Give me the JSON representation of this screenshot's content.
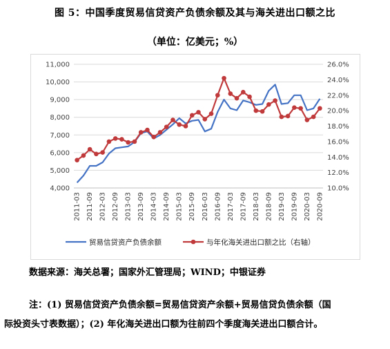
{
  "figure": {
    "title": "图 5：中国季度贸易信贷资产负债余额及其与海关进出口额之比",
    "unit": "（单位：亿美元；%）",
    "source": "数据来源：海关总署；国家外汇管理局；WIND；中银证券",
    "note_line1": "注：(1) 贸易信贷资产负债余额=贸易信贷资产余额+贸易信贷负债余额（国",
    "note_line2": "际投资头寸表数据）；(2) 年化海关进出口额为往前四个季度海关进出口额合计。"
  },
  "chart_data": {
    "type": "line",
    "x": [
      "2011-03",
      "2011-06",
      "2011-09",
      "2011-12",
      "2012-03",
      "2012-06",
      "2012-09",
      "2012-12",
      "2013-03",
      "2013-06",
      "2013-09",
      "2013-12",
      "2014-03",
      "2014-06",
      "2014-09",
      "2014-12",
      "2015-03",
      "2015-06",
      "2015-09",
      "2015-12",
      "2016-03",
      "2016-06",
      "2016-09",
      "2016-12",
      "2017-03",
      "2017-06",
      "2017-09",
      "2017-12",
      "2018-03",
      "2018-06",
      "2018-09",
      "2018-12",
      "2019-03",
      "2019-06",
      "2019-09",
      "2019-12",
      "2020-03",
      "2020-06",
      "2020-09"
    ],
    "x_tick_labels": [
      "2011-03",
      "2011-09",
      "2012-03",
      "2012-09",
      "2013-03",
      "2013-09",
      "2014-03",
      "2014-09",
      "2015-03",
      "2015-09",
      "2016-03",
      "2016-09",
      "2017-03",
      "2017-09",
      "2018-03",
      "2018-09",
      "2019-03",
      "2019-09",
      "2020-03",
      "2020-09"
    ],
    "left_axis": {
      "ylim": [
        4000,
        11000
      ],
      "ticks": [
        "4,000",
        "5,000",
        "6,000",
        "7,000",
        "8,000",
        "9,000",
        "10,000",
        "11,000"
      ]
    },
    "right_axis": {
      "ylim": [
        10.0,
        26.0
      ],
      "ticks": [
        "10.0%",
        "12.0%",
        "14.0%",
        "16.0%",
        "18.0%",
        "20.0%",
        "22.0%",
        "24.0%",
        "26.0%"
      ]
    },
    "series": [
      {
        "name": "贸易信贷资产负债余额",
        "axis": "left",
        "color": "#4472c4",
        "marker": "none",
        "values": [
          4300,
          4700,
          5250,
          5250,
          5450,
          5950,
          6250,
          6300,
          6350,
          6600,
          7100,
          7200,
          6800,
          7000,
          7300,
          7600,
          7950,
          7650,
          7800,
          7850,
          7200,
          7350,
          8300,
          9000,
          8500,
          8400,
          8950,
          8850,
          8700,
          8750,
          9500,
          9850,
          8750,
          8800,
          9250,
          9250,
          8400,
          8500,
          9050
        ]
      },
      {
        "name": "与年化海关进出口额之比（右轴）",
        "axis": "right",
        "color": "#c0393b",
        "marker": "circle",
        "values": [
          13.6,
          14.2,
          15.0,
          14.4,
          14.6,
          16.0,
          16.4,
          16.3,
          15.9,
          16.0,
          17.2,
          17.5,
          16.6,
          17.2,
          17.9,
          18.8,
          18.2,
          18.0,
          19.4,
          19.8,
          18.9,
          19.6,
          22.0,
          24.2,
          22.2,
          21.6,
          22.4,
          21.8,
          20.0,
          19.9,
          20.8,
          21.3,
          19.2,
          19.3,
          20.4,
          20.3,
          18.8,
          19.2,
          20.3
        ]
      }
    ],
    "grid": "horizontal",
    "legend_position": "bottom"
  }
}
